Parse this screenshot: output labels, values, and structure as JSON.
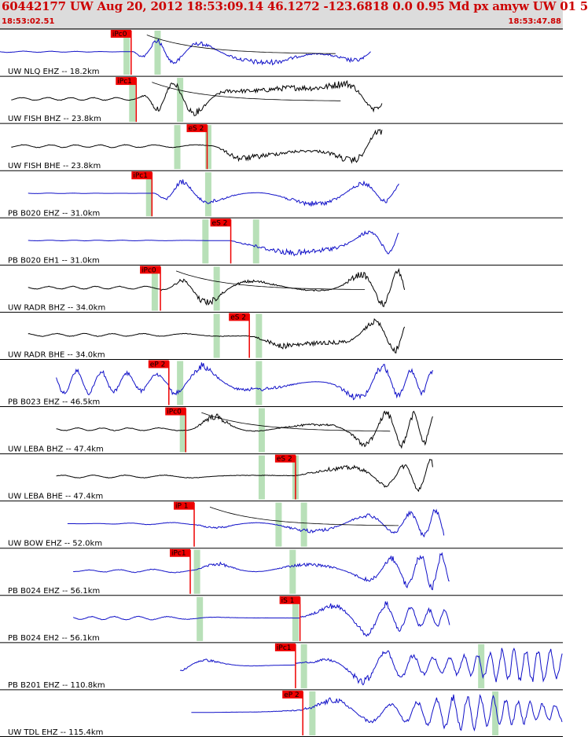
{
  "header": {
    "title": "60442177 UW Aug 20, 2012 18:53:09.14   46.1272 -123.6818  0.0 0.95 Md px amyw UW 01   5",
    "start_time": "18:53:02.51",
    "end_time": "18:53:47.88",
    "title_color": "#cc0000",
    "time_color": "#cc0000"
  },
  "colors": {
    "blue_trace": "#1010c8",
    "black_trace": "#000000",
    "pick": "#ee0000",
    "pick_label_bg": "#ee0000",
    "window": "#b8e0b8"
  },
  "chart_data": {
    "type": "line",
    "title": "60442177 UW Aug 20, 2012 18:53:09.14   46.1272 -123.6818  0.0 0.95 Md px amyw UW 01   5",
    "xlim": [
      "18:53:02.51",
      "18:53:47.88"
    ],
    "series": [
      {
        "label": "UW NLQ EHZ -- 18.2km",
        "color": "blue",
        "noise": 0.04,
        "start": 0,
        "end": 0.66,
        "p": {
          "label": "iPc0",
          "t": 0.233
        },
        "s": null,
        "win": [
          0.225,
          0.28
        ],
        "coda": true
      },
      {
        "label": "UW FISH BHZ -- 23.8km",
        "color": "black",
        "noise": 0.08,
        "start": 0.02,
        "end": 0.68,
        "p": {
          "label": "iPc1",
          "t": 0.242
        },
        "s": null,
        "win": [
          0.235,
          0.32
        ],
        "coda": true
      },
      {
        "label": "UW FISH BHE -- 23.8km",
        "color": "black",
        "noise": 0.08,
        "start": 0.02,
        "end": 0.68,
        "p": null,
        "s": {
          "label": "eS 2",
          "t": 0.368
        },
        "win": [
          0.315,
          0.37
        ]
      },
      {
        "label": "PB B020 EHZ -- 31.0km",
        "color": "blue",
        "noise": 0.02,
        "start": 0.05,
        "end": 0.71,
        "p": {
          "label": "iPc1",
          "t": 0.27
        },
        "s": null,
        "win": [
          0.265,
          0.37
        ]
      },
      {
        "label": "PB B020 EH1 -- 31.0km",
        "color": "blue",
        "noise": 0.02,
        "start": 0.05,
        "end": 0.71,
        "p": null,
        "s": {
          "label": "eS 2",
          "t": 0.41
        },
        "win": [
          0.365,
          0.455
        ]
      },
      {
        "label": "UW RADR BHZ -- 34.0km",
        "color": "black",
        "noise": 0.15,
        "start": 0.05,
        "end": 0.72,
        "p": {
          "label": "iPc0",
          "t": 0.285
        },
        "s": null,
        "win": [
          0.275,
          0.385
        ],
        "coda": true
      },
      {
        "label": "UW RADR BHE -- 34.0km",
        "color": "black",
        "noise": 0.15,
        "start": 0.05,
        "end": 0.72,
        "p": null,
        "s": {
          "label": "eS 2",
          "t": 0.443
        },
        "win": [
          0.385,
          0.46
        ]
      },
      {
        "label": "PB B023 EHZ -- 46.5km",
        "color": "blue",
        "noise": 0.7,
        "start": 0.1,
        "end": 0.77,
        "p": {
          "label": "eP 2",
          "t": 0.3
        },
        "s": null,
        "win": [
          0.32,
          0.46
        ]
      },
      {
        "label": "UW LEBA BHZ -- 47.4km",
        "color": "black",
        "noise": 0.12,
        "start": 0.1,
        "end": 0.77,
        "p": {
          "label": "iPc0",
          "t": 0.33
        },
        "s": null,
        "win": [
          0.325,
          0.465
        ],
        "coda": true
      },
      {
        "label": "UW LEBA BHE -- 47.4km",
        "color": "black",
        "noise": 0.12,
        "start": 0.1,
        "end": 0.77,
        "p": null,
        "s": {
          "label": "eS 2",
          "t": 0.525
        },
        "win": [
          0.465,
          0.525
        ]
      },
      {
        "label": "UW BOW EHZ -- 52.0km",
        "color": "blue",
        "noise": 0.1,
        "start": 0.12,
        "end": 0.79,
        "p": {
          "label": "iP 1",
          "t": 0.345
        },
        "s": null,
        "win": [
          0.495,
          0.54
        ],
        "coda": true
      },
      {
        "label": "PB B024 EHZ -- 56.1km",
        "color": "blue",
        "noise": 0.1,
        "start": 0.13,
        "end": 0.8,
        "p": {
          "label": "iPc1",
          "t": 0.338
        },
        "s": null,
        "win": [
          0.35,
          0.52
        ]
      },
      {
        "label": "PB B024 EH2 -- 56.1km",
        "color": "blue",
        "noise": 0.1,
        "start": 0.13,
        "end": 0.8,
        "p": null,
        "s": {
          "label": "iS 1",
          "t": 0.533
        },
        "win": [
          0.355,
          0.525
        ]
      },
      {
        "label": "PB B201 EHZ -- 110.8km",
        "color": "blue",
        "noise": 0.4,
        "start": 0.32,
        "end": 1.0,
        "p": {
          "label": "iPc1",
          "t": 0.525
        },
        "s": null,
        "win": [
          0.54,
          0.855
        ]
      },
      {
        "label": "UW TDL EHZ -- 115.4km",
        "color": "blue",
        "noise": 0.25,
        "start": 0.34,
        "end": 1.0,
        "p": {
          "label": "eP 2",
          "t": 0.538
        },
        "s": null,
        "win": [
          0.555,
          0.88
        ]
      }
    ]
  }
}
